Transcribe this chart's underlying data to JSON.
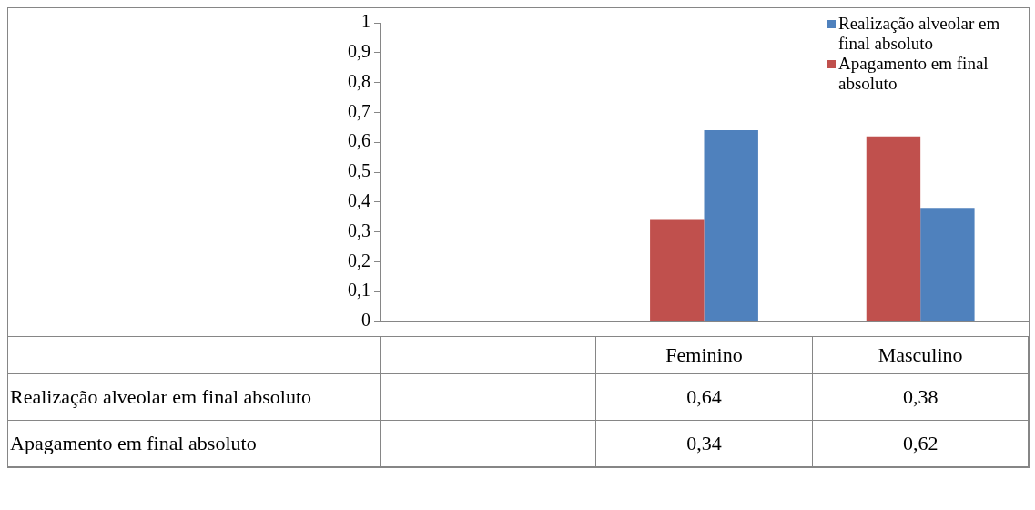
{
  "chart_data": {
    "type": "bar",
    "categories": [
      null,
      "Feminino",
      "Masculino"
    ],
    "series": [
      {
        "name": "Realização alveolar em final absoluto",
        "color": "#4f81bd",
        "values": [
          null,
          0.64,
          0.38
        ],
        "value_labels": [
          null,
          "0,64",
          "0,38"
        ]
      },
      {
        "name": "Apagamento em final absoluto",
        "color": "#c0504d",
        "values": [
          null,
          0.34,
          0.62
        ],
        "value_labels": [
          null,
          "0,34",
          "0,62"
        ]
      }
    ],
    "ylim": [
      0,
      1
    ],
    "yticks": [
      0,
      {
        "value": 0.1,
        "label": "0,1"
      },
      {
        "value": 0.2,
        "label": "0,2"
      },
      {
        "value": 0.3,
        "label": "0,3"
      },
      {
        "value": 0.4,
        "label": "0,4"
      },
      {
        "value": 0.5,
        "label": "0,5"
      },
      {
        "value": 0.6,
        "label": "0,6"
      },
      {
        "value": 0.7,
        "label": "0,7"
      },
      {
        "value": 0.8,
        "label": "0,8"
      },
      {
        "value": 0.9,
        "label": "0,9"
      },
      1
    ],
    "grid": false,
    "legend": "top right"
  }
}
